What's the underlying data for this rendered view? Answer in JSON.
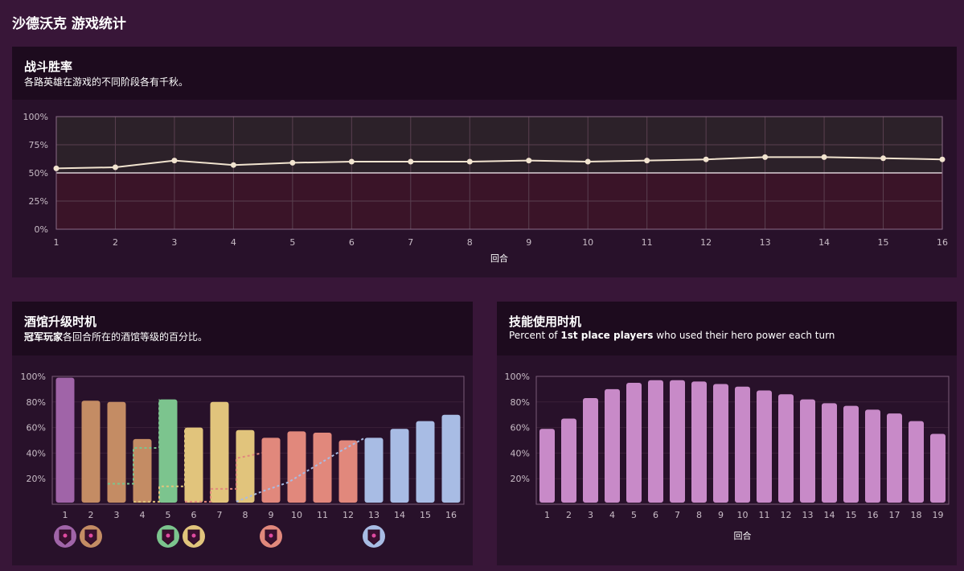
{
  "page": {
    "title": "沙德沃克 游戏统计"
  },
  "colors": {
    "background": "#381638",
    "panel": "#28112a",
    "panel_header": "#1d0b1e",
    "line": "#f1e3cf",
    "upper_zone": "#2c2129",
    "lower_zone": "#3a1428",
    "hero_power_bar": "#c88ac8",
    "tier_colors": [
      "#a064a8",
      "#c48c64",
      "#7cc48e",
      "#e1c47c",
      "#e1887c",
      "#a8bce4"
    ]
  },
  "winrate": {
    "title": "战斗胜率",
    "subtitle": "各路英雄在游戏的不同阶段各有千秋。"
  },
  "tavern": {
    "title": "酒馆升级时机",
    "subtitle_bold": "冠军玩家",
    "subtitle_rest": "各回合所在的酒馆等级的百分比。"
  },
  "hero_power": {
    "title": "技能使用时机",
    "subtitle_pre": "Percent of ",
    "subtitle_bold": "1st place players",
    "subtitle_post": " who used their hero power each turn"
  },
  "chart_data": [
    {
      "type": "line",
      "name": "winrate",
      "x": [
        1,
        2,
        3,
        4,
        5,
        6,
        7,
        8,
        9,
        10,
        11,
        12,
        13,
        14,
        15,
        16
      ],
      "values": [
        54,
        55,
        61,
        57,
        59,
        60,
        60,
        60,
        61,
        60,
        61,
        62,
        64,
        64,
        63,
        62
      ],
      "xlabel": "回合",
      "ylim": [
        0,
        100
      ],
      "yticks": [
        "0%",
        "25%",
        "50%",
        "75%",
        "100%"
      ],
      "reference_line": 50,
      "grid": true
    },
    {
      "type": "bar",
      "name": "tavern_tier",
      "categories": [
        "1",
        "2",
        "3",
        "4",
        "5",
        "6",
        "7",
        "8",
        "9",
        "10",
        "11",
        "12",
        "13",
        "14",
        "15",
        "16"
      ],
      "values": [
        99,
        81,
        80,
        51,
        82,
        60,
        80,
        58,
        52,
        57,
        56,
        50,
        52,
        59,
        65,
        70
      ],
      "bar_tier": [
        1,
        2,
        2,
        2,
        3,
        4,
        4,
        4,
        5,
        5,
        5,
        5,
        6,
        6,
        6,
        6
      ],
      "ylim": [
        0,
        100
      ],
      "yticks": [
        "20%",
        "40%",
        "60%",
        "80%",
        "100%"
      ],
      "dashed_series": [
        {
          "tier": 3,
          "points": [
            [
              3,
              16
            ],
            [
              4,
              16
            ],
            [
              4,
              44
            ],
            [
              5,
              44
            ],
            [
              5,
              82
            ]
          ]
        },
        {
          "tier": 4,
          "points": [
            [
              4,
              2
            ],
            [
              5,
              2
            ],
            [
              5,
              14
            ],
            [
              6,
              14
            ],
            [
              6,
              60
            ]
          ]
        },
        {
          "tier": 5,
          "points": [
            [
              6,
              2
            ],
            [
              7,
              2
            ],
            [
              7,
              12
            ],
            [
              8,
              12
            ],
            [
              8,
              36
            ],
            [
              9,
              40
            ]
          ]
        },
        {
          "tier": 6,
          "points": [
            [
              8,
              2
            ],
            [
              9,
              10
            ],
            [
              10,
              17
            ],
            [
              11,
              29
            ],
            [
              12,
              41
            ],
            [
              13,
              52
            ]
          ]
        }
      ],
      "tier_badges": [
        {
          "tier": 1,
          "x": 1
        },
        {
          "tier": 2,
          "x": 2
        },
        {
          "tier": 3,
          "x": 5
        },
        {
          "tier": 4,
          "x": 6
        },
        {
          "tier": 5,
          "x": 9
        },
        {
          "tier": 6,
          "x": 13
        }
      ]
    },
    {
      "type": "bar",
      "name": "hero_power",
      "categories": [
        "1",
        "2",
        "3",
        "4",
        "5",
        "6",
        "7",
        "8",
        "9",
        "10",
        "11",
        "12",
        "13",
        "14",
        "15",
        "16",
        "17",
        "18",
        "19"
      ],
      "values": [
        59,
        67,
        83,
        90,
        95,
        97,
        97,
        96,
        94,
        92,
        89,
        86,
        82,
        79,
        77,
        74,
        71,
        65,
        55
      ],
      "xlabel": "回合",
      "ylim": [
        0,
        100
      ],
      "yticks": [
        "20%",
        "40%",
        "60%",
        "80%",
        "100%"
      ]
    }
  ]
}
